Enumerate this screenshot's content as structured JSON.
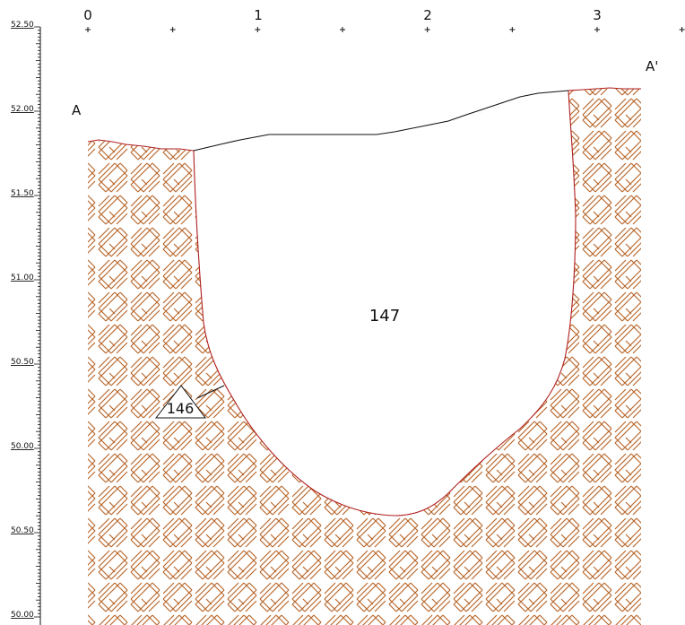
{
  "section_labels": {
    "left": "A",
    "right": "A'"
  },
  "x_scale": {
    "labels": [
      "0",
      "1",
      "2",
      "3"
    ]
  },
  "y_scale": {
    "labels": [
      "52.50",
      "52.00",
      "51.50",
      "51.00",
      "50.50",
      "50.00",
      "50.50",
      "50.00"
    ]
  },
  "features": {
    "fill": {
      "label": "147"
    },
    "cut": {
      "label": "146"
    }
  },
  "colors": {
    "hatch": "#b8692f",
    "cut_line": "#b01e1e",
    "ink": "#111111"
  }
}
